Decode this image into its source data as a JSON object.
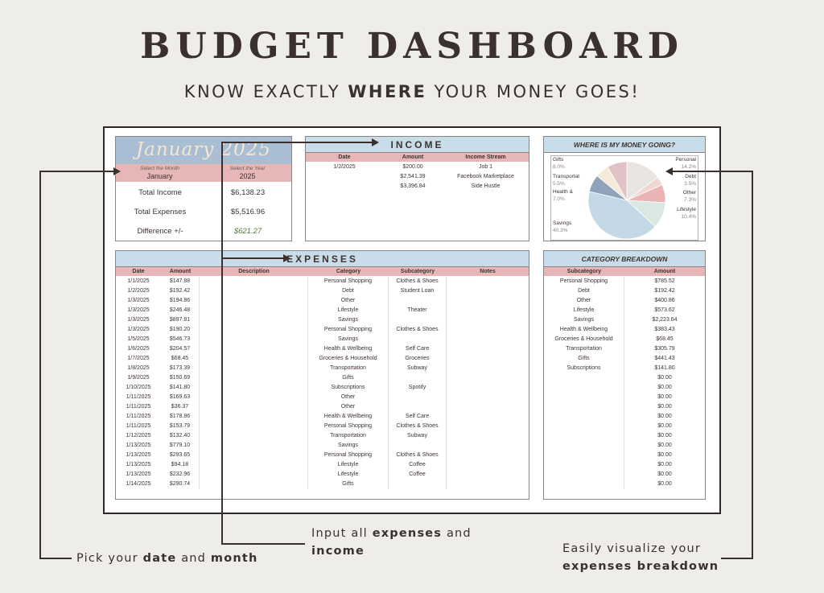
{
  "header": {
    "title": "BUDGET DASHBOARD",
    "subtitle_pre": "KNOW EXACTLY ",
    "subtitle_bold": "WHERE",
    "subtitle_post": " YOUR MONEY GOES!"
  },
  "month_panel": {
    "title": "January 2025",
    "select_month_label": "Select the Month",
    "select_year_label": "Select the Year",
    "month": "January",
    "year": "2025",
    "total_income_label": "Total Income",
    "total_income": "$6,138.23",
    "total_expenses_label": "Total Expenses",
    "total_expenses": "$5,516.96",
    "difference_label": "Difference +/-",
    "difference": "$621.27"
  },
  "income": {
    "title": "INCOME",
    "columns": [
      "Date",
      "Amount",
      "Income Stream"
    ],
    "rows": [
      [
        "1/2/2025",
        "$200.00",
        "Job 1"
      ],
      [
        "",
        "$2,541.39",
        "Facebook Marketplace"
      ],
      [
        "",
        "$3,396.84",
        "Side Hustle"
      ]
    ]
  },
  "expenses": {
    "title": "EXPENSES",
    "columns": [
      "Date",
      "Amount",
      "Description",
      "Category",
      "Subcategory",
      "Notes"
    ],
    "rows": [
      [
        "1/1/2025",
        "$147.88",
        "",
        "Personal Shopping",
        "Clothes & Shoes",
        ""
      ],
      [
        "1/2/2025",
        "$192.42",
        "",
        "Debt",
        "Student Loan",
        ""
      ],
      [
        "1/3/2025",
        "$194.86",
        "",
        "Other",
        "",
        ""
      ],
      [
        "1/3/2025",
        "$246.48",
        "",
        "Lifestyle",
        "Theater",
        ""
      ],
      [
        "1/3/2025",
        "$897.81",
        "",
        "Savings",
        "",
        ""
      ],
      [
        "1/3/2025",
        "$190.20",
        "",
        "Personal Shopping",
        "Clothes & Shoes",
        ""
      ],
      [
        "1/5/2025",
        "$546.73",
        "",
        "Savings",
        "",
        ""
      ],
      [
        "1/6/2025",
        "$204.57",
        "",
        "Health & Wellbeing",
        "Self Care",
        ""
      ],
      [
        "1/7/2025",
        "$68.45",
        "",
        "Groceries & Household",
        "Groceries",
        ""
      ],
      [
        "1/8/2025",
        "$173.39",
        "",
        "Transportation",
        "Subway",
        ""
      ],
      [
        "1/9/2025",
        "$150.69",
        "",
        "Gifts",
        "",
        ""
      ],
      [
        "1/10/2025",
        "$141.80",
        "",
        "Subscriptions",
        "Spotify",
        ""
      ],
      [
        "1/11/2025",
        "$169.63",
        "",
        "Other",
        "",
        ""
      ],
      [
        "1/11/2025",
        "$36.37",
        "",
        "Other",
        "",
        ""
      ],
      [
        "1/11/2025",
        "$178.86",
        "",
        "Health & Wellbeing",
        "Self Care",
        ""
      ],
      [
        "1/11/2025",
        "$153.79",
        "",
        "Personal Shopping",
        "Clothes & Shoes",
        ""
      ],
      [
        "1/12/2025",
        "$132.40",
        "",
        "Transportation",
        "Subway",
        ""
      ],
      [
        "1/13/2025",
        "$779.10",
        "",
        "Savings",
        "",
        ""
      ],
      [
        "1/13/2025",
        "$293.65",
        "",
        "Personal Shopping",
        "Clothes & Shoes",
        ""
      ],
      [
        "1/13/2025",
        "$94.18",
        "",
        "Lifestyle",
        "Coffee",
        ""
      ],
      [
        "1/13/2025",
        "$232.96",
        "",
        "Lifestyle",
        "Coffee",
        ""
      ],
      [
        "1/14/2025",
        "$290.74",
        "",
        "Gifts",
        "",
        ""
      ]
    ]
  },
  "breakdown": {
    "title": "CATEGORY BREAKDOWN",
    "columns": [
      "Subcategory",
      "Amount"
    ],
    "rows": [
      [
        "Personal Shopping",
        "$785.52"
      ],
      [
        "Debt",
        "$192.42"
      ],
      [
        "Other",
        "$400.86"
      ],
      [
        "Lifestyle",
        "$573.62"
      ],
      [
        "Savings",
        "$2,223.64"
      ],
      [
        "Health & Wellbeing",
        "$383.43"
      ],
      [
        "Groceries & Household",
        "$68.45"
      ],
      [
        "Transportation",
        "$305.79"
      ],
      [
        "Gifts",
        "$441.43"
      ],
      [
        "Subscriptions",
        "$141.80"
      ],
      [
        "",
        "$0.00"
      ],
      [
        "",
        "$0.00"
      ],
      [
        "",
        "$0.00"
      ],
      [
        "",
        "$0.00"
      ],
      [
        "",
        "$0.00"
      ],
      [
        "",
        "$0.00"
      ],
      [
        "",
        "$0.00"
      ],
      [
        "",
        "$0.00"
      ],
      [
        "",
        "$0.00"
      ],
      [
        "",
        "$0.00"
      ],
      [
        "",
        "$0.00"
      ],
      [
        "",
        "$0.00"
      ]
    ]
  },
  "pie": {
    "title": "WHERE IS MY MONEY GOING?"
  },
  "chart_data": {
    "type": "pie",
    "title": "WHERE IS MY MONEY GOING?",
    "slices": [
      {
        "label": "Personal",
        "pct": "14.2%",
        "value": 14.2,
        "color": "#e7e4e1"
      },
      {
        "label": "Debt",
        "pct": "3.5%",
        "value": 3.5,
        "color": "#f0d6d1"
      },
      {
        "label": "Other",
        "pct": "7.3%",
        "value": 7.3,
        "color": "#e8b5b4"
      },
      {
        "label": "Lifestyle",
        "pct": "10.4%",
        "value": 10.4,
        "color": "#d9e8e3"
      },
      {
        "label": "Savings",
        "pct": "40.3%",
        "value": 40.3,
        "color": "#c5d8e6"
      },
      {
        "label": "Health &",
        "pct": "7.0%",
        "value": 7.0,
        "color": "#8fa3bb"
      },
      {
        "label": "Transportat",
        "pct": "5.5%",
        "value": 5.5,
        "color": "#f4ead8"
      },
      {
        "label": "Gifts",
        "pct": "8.0%",
        "value": 8.0,
        "color": "#dfc3c6"
      }
    ]
  },
  "annotations": {
    "pick_pre": "Pick your ",
    "pick_b1": "date",
    "pick_mid": " and ",
    "pick_b2": "month",
    "input_pre": "Input all ",
    "input_b1": "expenses",
    "input_mid": " and",
    "input_b2": "income",
    "viz_line1": "Easily visualize your",
    "viz_b": "expenses breakdown"
  }
}
